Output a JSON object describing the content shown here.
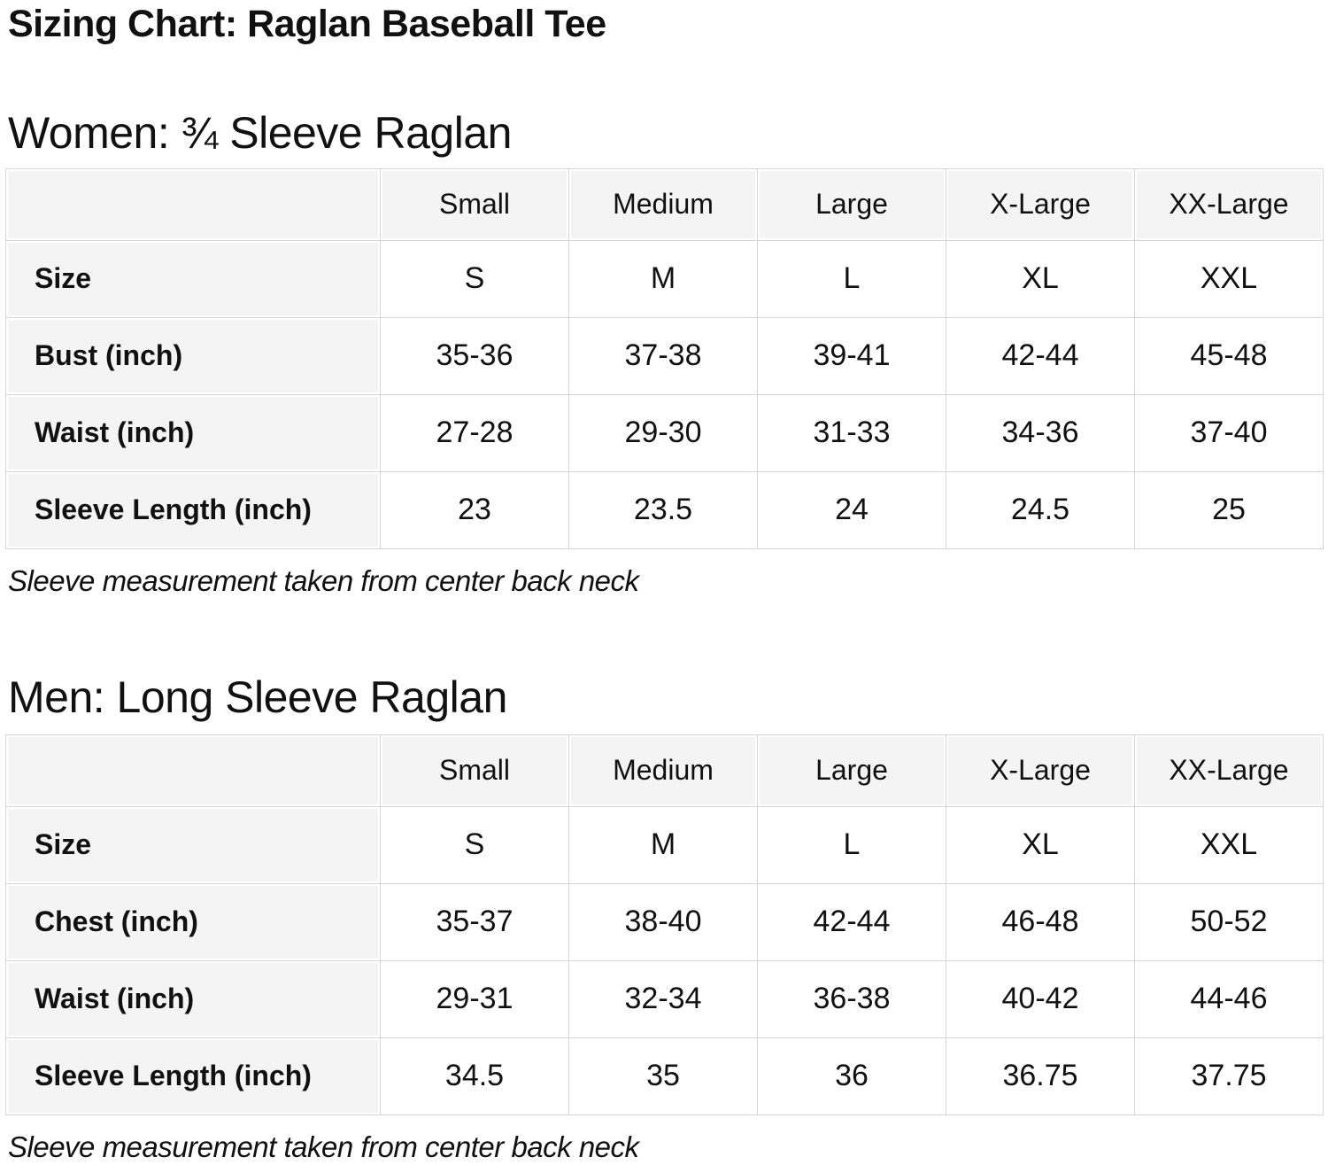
{
  "page": {
    "title": "Sizing Chart: Raglan Baseball Tee"
  },
  "colors": {
    "cell_background": "#f4f4f4",
    "grid_line": "#d5d5d5",
    "text": "#111111"
  },
  "women": {
    "heading": "Women: ¾ Sleeve Raglan",
    "note": "Sleeve measurement taken from center back neck",
    "table": {
      "columns": [
        "Small",
        "Medium",
        "Large",
        "X-Large",
        "XX-Large"
      ],
      "rows": [
        {
          "label": "Size",
          "values": [
            "S",
            "M",
            "L",
            "XL",
            "XXL"
          ]
        },
        {
          "label": "Bust (inch)",
          "values": [
            "35-36",
            "37-38",
            "39-41",
            "42-44",
            "45-48"
          ]
        },
        {
          "label": "Waist (inch)",
          "values": [
            "27-28",
            "29-30",
            "31-33",
            "34-36",
            "37-40"
          ]
        },
        {
          "label": "Sleeve Length (inch)",
          "values": [
            "23",
            "23.5",
            "24",
            "24.5",
            "25"
          ]
        }
      ]
    }
  },
  "men": {
    "heading": "Men: Long Sleeve Raglan",
    "note": "Sleeve measurement taken from center back neck",
    "table": {
      "columns": [
        "Small",
        "Medium",
        "Large",
        "X-Large",
        "XX-Large"
      ],
      "rows": [
        {
          "label": "Size",
          "values": [
            "S",
            "M",
            "L",
            "XL",
            "XXL"
          ]
        },
        {
          "label": "Chest (inch)",
          "values": [
            "35-37",
            "38-40",
            "42-44",
            "46-48",
            "50-52"
          ]
        },
        {
          "label": "Waist (inch)",
          "values": [
            "29-31",
            "32-34",
            "36-38",
            "40-42",
            "44-46"
          ]
        },
        {
          "label": "Sleeve Length (inch)",
          "values": [
            "34.5",
            "35",
            "36",
            "36.75",
            "37.75"
          ]
        }
      ]
    }
  }
}
